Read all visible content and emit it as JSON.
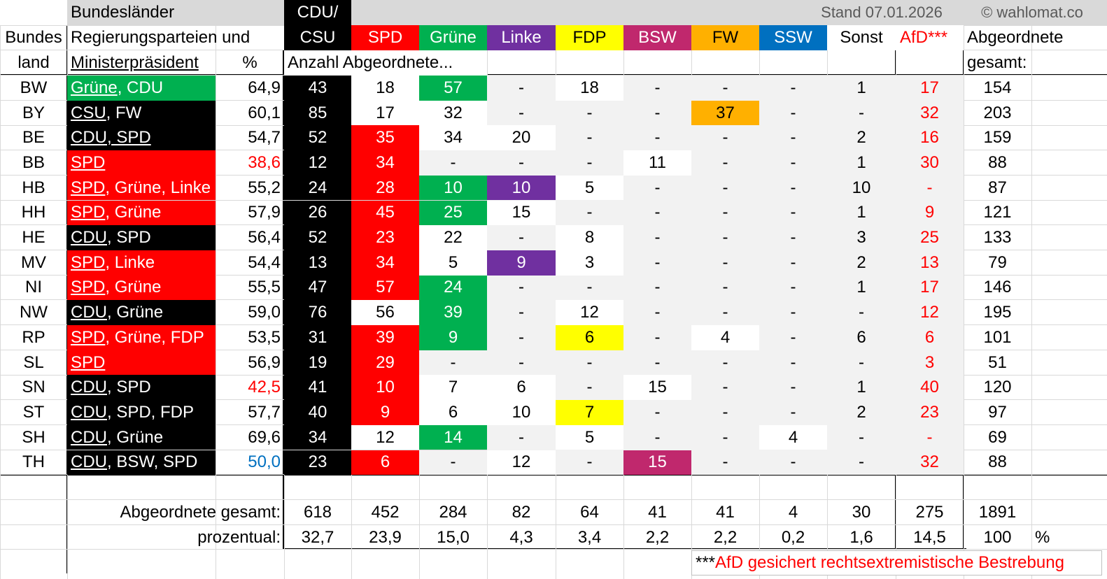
{
  "header": {
    "bundeslaender": "Bundesländer",
    "bundes": "Bundes",
    "land": "land",
    "regierung_line1": "Regierungsparteien und",
    "regierung_line2": "Ministerpräsident",
    "percent": "%",
    "cdu_line1": "CDU/",
    "cdu_line2": "CSU",
    "anzahl": "Anzahl Abgeordnete...",
    "stand": "Stand 07.01.2026",
    "copyright": "© wahlomat.co",
    "abgeordnete": "Abgeordnete",
    "gesamt": "gesamt:"
  },
  "parties": [
    {
      "label": "SPD",
      "bg": "#ff0000",
      "color": "#ffffff"
    },
    {
      "label": "Grüne",
      "bg": "#00b050",
      "color": "#ffffff"
    },
    {
      "label": "Linke",
      "bg": "#7030a0",
      "color": "#ffffff"
    },
    {
      "label": "FDP",
      "bg": "#ffff00",
      "color": "#000000"
    },
    {
      "label": "BSW",
      "bg": "#c0286d",
      "color": "#ffffff"
    },
    {
      "label": "FW",
      "bg": "#ffb000",
      "color": "#000000"
    },
    {
      "label": "SSW",
      "bg": "#0070c0",
      "color": "#ffffff"
    },
    {
      "label": "Sonst",
      "bg": "#ffffff",
      "color": "#000000"
    },
    {
      "label": "AfD***",
      "bg": "#0070c0",
      "color": "#ff0000"
    }
  ],
  "rows": [
    {
      "land": "BW",
      "gov": [
        {
          "t": "Grüne",
          "u": true
        },
        {
          "t": ", CDU",
          "u": false
        }
      ],
      "gov_bg": "#00b050",
      "pct": "64,9",
      "pct_color": "#000000",
      "cdu": "43",
      "spd": "18",
      "gruene": "57",
      "linke": "-",
      "fdp": "18",
      "bsw": "-",
      "fw": "-",
      "ssw": "-",
      "sonst": "1",
      "afd": "17",
      "total": "154"
    },
    {
      "land": "BY",
      "gov": [
        {
          "t": "CSU",
          "u": true
        },
        {
          "t": ", FW",
          "u": false
        }
      ],
      "gov_bg": "#000000",
      "pct": "60,1",
      "pct_color": "#000000",
      "cdu": "85",
      "spd": "17",
      "gruene": "32",
      "linke": "-",
      "fdp": "-",
      "bsw": "-",
      "fw": "37",
      "ssw": "-",
      "sonst": "-",
      "afd": "32",
      "total": "203"
    },
    {
      "land": "BE",
      "gov": [
        {
          "t": "CDU, SPD",
          "u": true
        }
      ],
      "gov_bg": "#000000",
      "pct": "54,7",
      "pct_color": "#000000",
      "cdu": "52",
      "spd": "35",
      "gruene": "34",
      "linke": "20",
      "fdp": "-",
      "bsw": "-",
      "fw": "-",
      "ssw": "-",
      "sonst": "2",
      "afd": "16",
      "total": "159"
    },
    {
      "land": "BB",
      "gov": [
        {
          "t": "SPD",
          "u": true
        }
      ],
      "gov_bg": "#ff0000",
      "pct": "38,6",
      "pct_color": "#ff0000",
      "cdu": "12",
      "spd": "34",
      "gruene": "-",
      "linke": "-",
      "fdp": "-",
      "bsw": "11",
      "fw": "-",
      "ssw": "-",
      "sonst": "1",
      "afd": "30",
      "total": "88"
    },
    {
      "land": "HB",
      "gov": [
        {
          "t": "SPD",
          "u": true
        },
        {
          "t": ", Grüne, Linke",
          "u": false
        }
      ],
      "gov_bg": "#ff0000",
      "pct": "55,2",
      "pct_color": "#000000",
      "cdu": "24",
      "spd": "28",
      "gruene": "10",
      "linke": "10",
      "fdp": "5",
      "bsw": "-",
      "fw": "-",
      "ssw": "-",
      "sonst": "10",
      "afd": "-",
      "total": "87"
    },
    {
      "land": "HH",
      "gov": [
        {
          "t": "SPD",
          "u": true
        },
        {
          "t": ", Grüne",
          "u": false
        }
      ],
      "gov_bg": "#ff0000",
      "pct": "57,9",
      "pct_color": "#000000",
      "cdu": "26",
      "spd": "45",
      "gruene": "25",
      "linke": "15",
      "fdp": "-",
      "bsw": "-",
      "fw": "-",
      "ssw": "-",
      "sonst": "1",
      "afd": "9",
      "total": "121"
    },
    {
      "land": "HE",
      "gov": [
        {
          "t": "CDU",
          "u": true
        },
        {
          "t": ", SPD",
          "u": false
        }
      ],
      "gov_bg": "#000000",
      "pct": "56,4",
      "pct_color": "#000000",
      "cdu": "52",
      "spd": "23",
      "gruene": "22",
      "linke": "-",
      "fdp": "8",
      "bsw": "-",
      "fw": "-",
      "ssw": "-",
      "sonst": "3",
      "afd": "25",
      "total": "133"
    },
    {
      "land": "MV",
      "gov": [
        {
          "t": "SPD",
          "u": true
        },
        {
          "t": ", Linke",
          "u": false
        }
      ],
      "gov_bg": "#ff0000",
      "pct": "54,4",
      "pct_color": "#000000",
      "cdu": "13",
      "spd": "34",
      "gruene": "5",
      "linke": "9",
      "fdp": "3",
      "bsw": "-",
      "fw": "-",
      "ssw": "-",
      "sonst": "2",
      "afd": "13",
      "total": "79"
    },
    {
      "land": "NI",
      "gov": [
        {
          "t": "SPD",
          "u": true
        },
        {
          "t": ", Grüne",
          "u": false
        }
      ],
      "gov_bg": "#ff0000",
      "pct": "55,5",
      "pct_color": "#000000",
      "cdu": "47",
      "spd": "57",
      "gruene": "24",
      "linke": "-",
      "fdp": "-",
      "bsw": "-",
      "fw": "-",
      "ssw": "-",
      "sonst": "1",
      "afd": "17",
      "total": "146"
    },
    {
      "land": "NW",
      "gov": [
        {
          "t": "CDU",
          "u": true
        },
        {
          "t": ", Grüne",
          "u": false
        }
      ],
      "gov_bg": "#000000",
      "pct": "59,0",
      "pct_color": "#000000",
      "cdu": "76",
      "spd": "56",
      "gruene": "39",
      "linke": "-",
      "fdp": "12",
      "bsw": "-",
      "fw": "-",
      "ssw": "-",
      "sonst": "-",
      "afd": "12",
      "total": "195"
    },
    {
      "land": "RP",
      "gov": [
        {
          "t": "SPD",
          "u": true
        },
        {
          "t": ", Grüne, FDP",
          "u": false
        }
      ],
      "gov_bg": "#ff0000",
      "pct": "53,5",
      "pct_color": "#000000",
      "cdu": "31",
      "spd": "39",
      "gruene": "9",
      "linke": "-",
      "fdp": "6",
      "bsw": "-",
      "fw": "4",
      "ssw": "-",
      "sonst": "6",
      "afd": "6",
      "total": "101"
    },
    {
      "land": "SL",
      "gov": [
        {
          "t": "SPD",
          "u": true
        }
      ],
      "gov_bg": "#ff0000",
      "pct": "56,9",
      "pct_color": "#000000",
      "cdu": "19",
      "spd": "29",
      "gruene": "-",
      "linke": "-",
      "fdp": "-",
      "bsw": "-",
      "fw": "-",
      "ssw": "-",
      "sonst": "-",
      "afd": "3",
      "total": "51"
    },
    {
      "land": "SN",
      "gov": [
        {
          "t": "CDU",
          "u": true
        },
        {
          "t": ", SPD",
          "u": false
        }
      ],
      "gov_bg": "#000000",
      "pct": "42,5",
      "pct_color": "#ff0000",
      "cdu": "41",
      "spd": "10",
      "gruene": "7",
      "linke": "6",
      "fdp": "-",
      "bsw": "15",
      "fw": "-",
      "ssw": "-",
      "sonst": "1",
      "afd": "40",
      "total": "120"
    },
    {
      "land": "ST",
      "gov": [
        {
          "t": "CDU",
          "u": true
        },
        {
          "t": ", SPD, FDP",
          "u": false
        }
      ],
      "gov_bg": "#000000",
      "pct": "57,7",
      "pct_color": "#000000",
      "cdu": "40",
      "spd": "9",
      "gruene": "6",
      "linke": "10",
      "fdp": "7",
      "bsw": "-",
      "fw": "-",
      "ssw": "-",
      "sonst": "2",
      "afd": "23",
      "total": "97"
    },
    {
      "land": "SH",
      "gov": [
        {
          "t": "CDU",
          "u": true
        },
        {
          "t": ", Grüne",
          "u": false
        }
      ],
      "gov_bg": "#000000",
      "pct": "69,6",
      "pct_color": "#000000",
      "cdu": "34",
      "spd": "12",
      "gruene": "14",
      "linke": "-",
      "fdp": "5",
      "bsw": "-",
      "fw": "-",
      "ssw": "4",
      "sonst": "-",
      "afd": "-",
      "total": "69"
    },
    {
      "land": "TH",
      "gov": [
        {
          "t": "CDU",
          "u": true
        },
        {
          "t": ", BSW, SPD",
          "u": false
        }
      ],
      "gov_bg": "#000000",
      "pct": "50,0",
      "pct_color": "#0070c0",
      "cdu": "23",
      "spd": "6",
      "gruene": "-",
      "linke": "12",
      "fdp": "-",
      "bsw": "15",
      "fw": "-",
      "ssw": "-",
      "sonst": "-",
      "afd": "32",
      "total": "88"
    }
  ],
  "highlights": [
    {
      "row": 0,
      "col": "spd",
      "bg": "#ffffff",
      "color": "#000000"
    },
    {
      "row": 0,
      "col": "gruene",
      "bg": "#00b050",
      "color": "#ffffff"
    },
    {
      "row": 0,
      "col": "fdp",
      "bg": "#ffffff",
      "color": "#000000"
    },
    {
      "row": 1,
      "col": "spd",
      "bg": "#ffffff",
      "color": "#000000"
    },
    {
      "row": 1,
      "col": "gruene",
      "bg": "#ffffff",
      "color": "#000000"
    },
    {
      "row": 1,
      "col": "fw",
      "bg": "#ffb000",
      "color": "#000000"
    },
    {
      "row": 2,
      "col": "spd",
      "bg": "#ff0000",
      "color": "#ffffff"
    },
    {
      "row": 2,
      "col": "gruene",
      "bg": "#ffffff",
      "color": "#000000"
    },
    {
      "row": 2,
      "col": "linke",
      "bg": "#ffffff",
      "color": "#000000"
    },
    {
      "row": 3,
      "col": "spd",
      "bg": "#ff0000",
      "color": "#ffffff"
    },
    {
      "row": 3,
      "col": "bsw",
      "bg": "#ffffff",
      "color": "#000000"
    },
    {
      "row": 4,
      "col": "spd",
      "bg": "#ff0000",
      "color": "#ffffff"
    },
    {
      "row": 4,
      "col": "gruene",
      "bg": "#00b050",
      "color": "#ffffff"
    },
    {
      "row": 4,
      "col": "linke",
      "bg": "#7030a0",
      "color": "#ffffff"
    },
    {
      "row": 4,
      "col": "fdp",
      "bg": "#ffffff",
      "color": "#000000"
    },
    {
      "row": 5,
      "col": "spd",
      "bg": "#ff0000",
      "color": "#ffffff"
    },
    {
      "row": 5,
      "col": "gruene",
      "bg": "#00b050",
      "color": "#ffffff"
    },
    {
      "row": 5,
      "col": "linke",
      "bg": "#ffffff",
      "color": "#000000"
    },
    {
      "row": 6,
      "col": "spd",
      "bg": "#ff0000",
      "color": "#ffffff"
    },
    {
      "row": 6,
      "col": "gruene",
      "bg": "#ffffff",
      "color": "#000000"
    },
    {
      "row": 6,
      "col": "fdp",
      "bg": "#ffffff",
      "color": "#000000"
    },
    {
      "row": 7,
      "col": "spd",
      "bg": "#ff0000",
      "color": "#ffffff"
    },
    {
      "row": 7,
      "col": "gruene",
      "bg": "#ffffff",
      "color": "#000000"
    },
    {
      "row": 7,
      "col": "linke",
      "bg": "#7030a0",
      "color": "#ffffff"
    },
    {
      "row": 7,
      "col": "fdp",
      "bg": "#ffffff",
      "color": "#000000"
    },
    {
      "row": 8,
      "col": "spd",
      "bg": "#ff0000",
      "color": "#ffffff"
    },
    {
      "row": 8,
      "col": "gruene",
      "bg": "#00b050",
      "color": "#ffffff"
    },
    {
      "row": 9,
      "col": "spd",
      "bg": "#ffffff",
      "color": "#000000"
    },
    {
      "row": 9,
      "col": "gruene",
      "bg": "#00b050",
      "color": "#ffffff"
    },
    {
      "row": 9,
      "col": "fdp",
      "bg": "#ffffff",
      "color": "#000000"
    },
    {
      "row": 10,
      "col": "spd",
      "bg": "#ff0000",
      "color": "#ffffff"
    },
    {
      "row": 10,
      "col": "gruene",
      "bg": "#00b050",
      "color": "#ffffff"
    },
    {
      "row": 10,
      "col": "fdp",
      "bg": "#ffff00",
      "color": "#000000"
    },
    {
      "row": 10,
      "col": "fw",
      "bg": "#ffffff",
      "color": "#000000"
    },
    {
      "row": 11,
      "col": "spd",
      "bg": "#ff0000",
      "color": "#ffffff"
    },
    {
      "row": 12,
      "col": "spd",
      "bg": "#ff0000",
      "color": "#ffffff"
    },
    {
      "row": 12,
      "col": "gruene",
      "bg": "#ffffff",
      "color": "#000000"
    },
    {
      "row": 12,
      "col": "linke",
      "bg": "#ffffff",
      "color": "#000000"
    },
    {
      "row": 12,
      "col": "bsw",
      "bg": "#ffffff",
      "color": "#000000"
    },
    {
      "row": 13,
      "col": "spd",
      "bg": "#ff0000",
      "color": "#ffffff"
    },
    {
      "row": 13,
      "col": "gruene",
      "bg": "#ffffff",
      "color": "#000000"
    },
    {
      "row": 13,
      "col": "linke",
      "bg": "#ffffff",
      "color": "#000000"
    },
    {
      "row": 13,
      "col": "fdp",
      "bg": "#ffff00",
      "color": "#000000"
    },
    {
      "row": 14,
      "col": "spd",
      "bg": "#ffffff",
      "color": "#000000"
    },
    {
      "row": 14,
      "col": "gruene",
      "bg": "#00b050",
      "color": "#ffffff"
    },
    {
      "row": 14,
      "col": "fdp",
      "bg": "#ffffff",
      "color": "#000000"
    },
    {
      "row": 14,
      "col": "ssw",
      "bg": "#ffffff",
      "color": "#000000"
    },
    {
      "row": 15,
      "col": "spd",
      "bg": "#ff0000",
      "color": "#ffffff"
    },
    {
      "row": 15,
      "col": "linke",
      "bg": "#ffffff",
      "color": "#000000"
    },
    {
      "row": 15,
      "col": "bsw",
      "bg": "#c0286d",
      "color": "#ffffff"
    }
  ],
  "totals": {
    "label": "Abgeordnete gesamt:",
    "values": [
      "618",
      "452",
      "284",
      "82",
      "64",
      "41",
      "41",
      "4",
      "30",
      "275",
      "1891"
    ]
  },
  "percentages": {
    "label": "prozentual:",
    "values": [
      "32,7",
      "23,9",
      "15,0",
      "4,3",
      "3,4",
      "2,2",
      "2,2",
      "0,2",
      "1,6",
      "14,5",
      "100"
    ],
    "suffix": "%"
  },
  "footnote": {
    "stars": "***",
    "text": "AfD gesichert rechtsextremistische Bestrebung"
  },
  "colors": {
    "cdu": "#000000",
    "spd": "#ff0000",
    "gruene": "#00b050",
    "linke": "#7030a0",
    "fdp": "#ffff00",
    "bsw": "#c0286d",
    "fw": "#ffb000",
    "ssw": "#0070c0",
    "afd_text": "#ff0000",
    "grey_fill": "#f2f2f2",
    "header_grey": "#d9d9d9"
  }
}
